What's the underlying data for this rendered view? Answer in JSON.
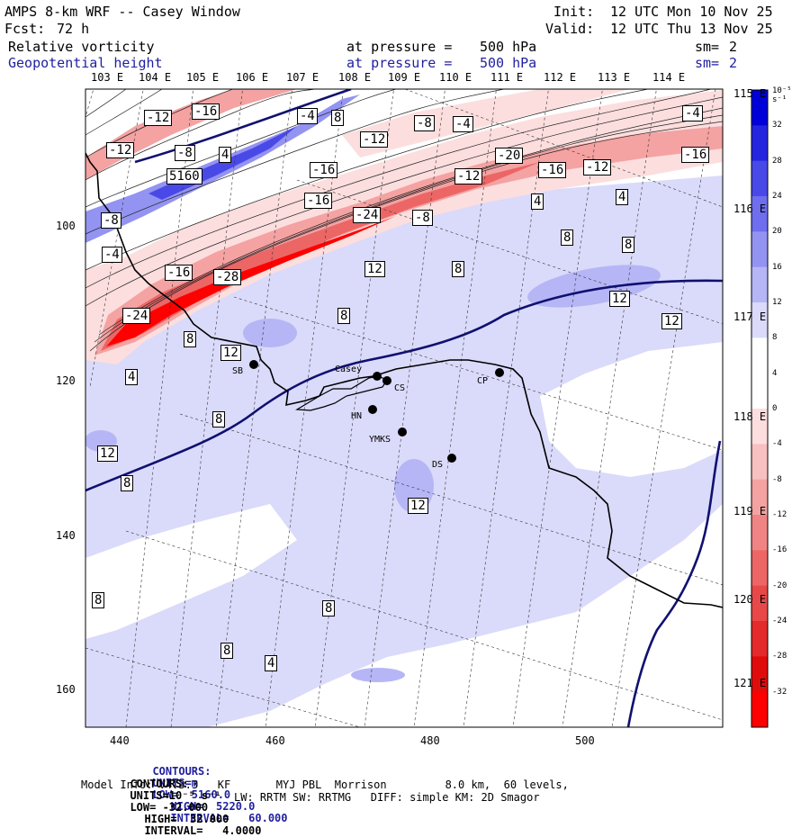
{
  "header": {
    "title": "AMPS 8-km WRF -- Casey Window",
    "fcst_label": "Fcst:",
    "fcst_value": "72 h",
    "init_label": "Init:",
    "init_value": "12 UTC Mon 10 Nov 25",
    "valid_label": "Valid:",
    "valid_value": "12 UTC Thu 13 Nov 25"
  },
  "fields": [
    {
      "name": "Relative vorticity",
      "level_label": "at pressure =",
      "level_value": "500 hPa",
      "smooth_label": "sm=",
      "smooth_value": "2"
    },
    {
      "name": "Geopotential height",
      "level_label": "at pressure =",
      "level_value": "500 hPa",
      "smooth_label": "sm=",
      "smooth_value": "2"
    }
  ],
  "axes": {
    "top_lon": [
      "103 E",
      "104 E",
      "105 E",
      "106 E",
      "107 E",
      "108 E",
      "109 E",
      "110 E",
      "111 E",
      "112 E",
      "113 E",
      "114 E"
    ],
    "right_lat": [
      "115 E",
      "116 E",
      "117 E",
      "118 E",
      "119 E",
      "120 E",
      "121 E"
    ],
    "x_ticks": [
      "440",
      "460",
      "480",
      "500"
    ],
    "y_ticks": [
      "100",
      "120",
      "140",
      "160"
    ]
  },
  "colorbar": {
    "unit": "10⁻⁵ s⁻¹",
    "labels": [
      "32",
      "28",
      "24",
      "20",
      "16",
      "12",
      "8",
      "4",
      "0",
      "-4",
      "-8",
      "-12",
      "-16",
      "-20",
      "-24",
      "-28",
      "-32"
    ],
    "colors": [
      "#0000d8",
      "#2525e0",
      "#4949e8",
      "#6e6eee",
      "#9393f2",
      "#b6b6f6",
      "#dadafa",
      "#ffffff",
      "#ffffff",
      "#fcdede",
      "#f8c0c0",
      "#f4a2a2",
      "#f08484",
      "#ec6666",
      "#e84848",
      "#e42a2a",
      "#e00c0c",
      "#ff0000"
    ]
  },
  "stations": [
    {
      "code": "SB"
    },
    {
      "code": "Casey"
    },
    {
      "code": "CS"
    },
    {
      "code": "CP"
    },
    {
      "code": "HN"
    },
    {
      "code": "YMKS"
    },
    {
      "code": "DS"
    }
  ],
  "contour_labels": [
    "-12",
    "-16",
    "-4",
    "8",
    "-8",
    "-4",
    "-4",
    "-12",
    "-8",
    "4",
    "-12",
    "-16",
    "-16",
    "-20",
    "-16",
    "-12",
    "-16",
    "5160",
    "-12",
    "4",
    "4",
    "12",
    "-8",
    "-24",
    "-8",
    "8",
    "-4",
    "8",
    "-16",
    "-28",
    "12",
    "8",
    "12",
    "-24",
    "8",
    "8",
    "12",
    "4",
    "8",
    "12",
    "12",
    "8",
    "8",
    "8",
    "4",
    "8"
  ],
  "footer": {
    "contours_height": {
      "label": "CONTOURS:",
      "units": "UNITS=m",
      "low": "LOW=  5160.0",
      "high": "HIGH=  5220.0",
      "interval": "INTERVAL=   60.000"
    },
    "contours_vort": {
      "label": "CONTOURS:",
      "units": "UNITS=10⁻⁵ s⁻¹",
      "low": "LOW= -32.000",
      "high": "HIGH=  32.000",
      "interval": "INTERVAL=   4.0000"
    },
    "model_info": "Model Info: V4.3.3   KF       MYJ PBL  Morrison         8.0 km,  60 levels,",
    "model_info2": "LW: RRTM SW: RRTMG   DIFF: simple KM: 2D Smagor"
  }
}
